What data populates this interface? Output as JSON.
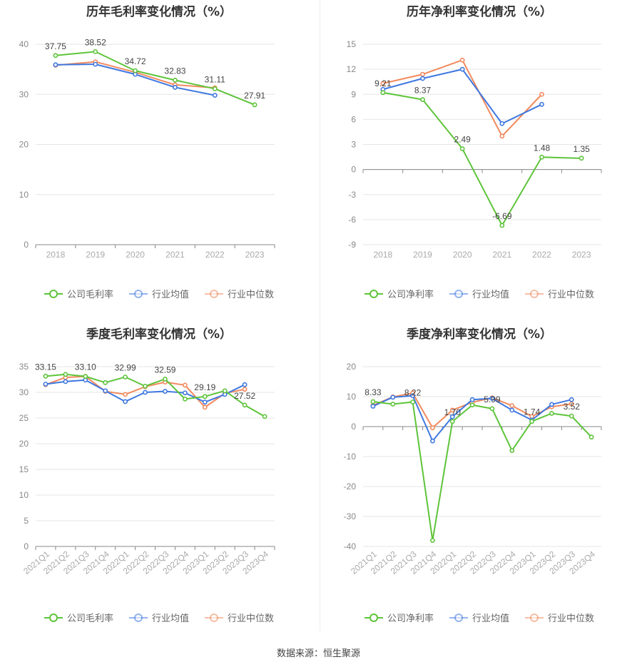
{
  "colors": {
    "company": "#5ec43a",
    "avg": "#3f78e0",
    "median": "#f28a5e"
  },
  "source": "数据来源：恒生聚源",
  "chart_data": [
    {
      "type": "line",
      "title": "历年毛利率变化情况（%）",
      "categories": [
        "2018",
        "2019",
        "2020",
        "2021",
        "2022",
        "2023"
      ],
      "ylim": [
        0,
        40
      ],
      "yticks": [
        0,
        10,
        20,
        30,
        40
      ],
      "grid": true,
      "legend_position": "bottom",
      "series": [
        {
          "name": "公司毛利率",
          "values": [
            37.75,
            38.52,
            34.72,
            32.83,
            31.11,
            27.91
          ],
          "labels": [
            "37.75",
            "38.52",
            "34.72",
            "32.83",
            "31.11",
            "27.91"
          ]
        },
        {
          "name": "行业均值",
          "values": [
            35.9,
            36.0,
            34.0,
            31.4,
            29.8,
            null
          ]
        },
        {
          "name": "行业中位数",
          "values": [
            35.8,
            36.5,
            34.4,
            31.9,
            31.3,
            null
          ]
        }
      ]
    },
    {
      "type": "line",
      "title": "历年净利率变化情况（%）",
      "categories": [
        "2018",
        "2019",
        "2020",
        "2021",
        "2022",
        "2023"
      ],
      "ylim": [
        -9,
        15
      ],
      "yticks": [
        -9,
        -6,
        -3,
        0,
        3,
        6,
        9,
        12,
        15
      ],
      "grid": true,
      "legend_position": "bottom",
      "series": [
        {
          "name": "公司净利率",
          "values": [
            9.21,
            8.37,
            2.49,
            -6.69,
            1.48,
            1.35
          ],
          "labels": [
            "9.21",
            "8.37",
            "2.49",
            "-6.69",
            "1.48",
            "1.35"
          ]
        },
        {
          "name": "行业均值",
          "values": [
            9.6,
            10.9,
            12.0,
            5.5,
            7.8,
            null
          ]
        },
        {
          "name": "行业中位数",
          "values": [
            10.3,
            11.4,
            13.1,
            4.0,
            9.0,
            null
          ]
        }
      ]
    },
    {
      "type": "line",
      "title": "季度毛利率变化情况（%）",
      "categories": [
        "2021Q1",
        "2021Q2",
        "2021Q3",
        "2021Q4",
        "2022Q1",
        "2022Q2",
        "2022Q3",
        "2022Q4",
        "2023Q1",
        "2023Q2",
        "2023Q3",
        "2023Q4"
      ],
      "ylim": [
        0,
        35
      ],
      "yticks": [
        0,
        5,
        10,
        15,
        20,
        25,
        30,
        35
      ],
      "grid": true,
      "legend_position": "bottom",
      "series": [
        {
          "name": "公司毛利率",
          "values": [
            33.15,
            33.5,
            33.1,
            31.9,
            32.99,
            31.2,
            32.59,
            28.7,
            29.19,
            30.3,
            27.52,
            25.3
          ],
          "labels": [
            "33.15",
            "",
            "33.10",
            "",
            "32.99",
            "",
            "32.59",
            "",
            "29.19",
            "",
            "27.52",
            ""
          ]
        },
        {
          "name": "行业均值",
          "values": [
            31.6,
            32.1,
            32.4,
            30.3,
            28.2,
            30.0,
            30.2,
            29.9,
            28.1,
            29.6,
            31.5,
            null
          ]
        },
        {
          "name": "行业中位数",
          "values": [
            31.5,
            32.9,
            33.1,
            30.2,
            29.6,
            31.1,
            32.0,
            31.4,
            27.1,
            29.8,
            30.6,
            null
          ]
        }
      ]
    },
    {
      "type": "line",
      "title": "季度净利率变化情况（%）",
      "categories": [
        "2021Q1",
        "2021Q2",
        "2021Q3",
        "2021Q4",
        "2022Q1",
        "2022Q2",
        "2022Q3",
        "2022Q4",
        "2023Q1",
        "2023Q2",
        "2023Q3",
        "2023Q4"
      ],
      "ylim": [
        -40,
        20
      ],
      "yticks": [
        -40,
        -30,
        -20,
        -10,
        0,
        10,
        20
      ],
      "grid": true,
      "legend_position": "bottom",
      "series": [
        {
          "name": "公司净利率",
          "values": [
            8.33,
            7.5,
            8.22,
            -38.0,
            1.7,
            7.2,
            5.99,
            -8.0,
            1.74,
            4.4,
            3.52,
            -3.5
          ],
          "labels": [
            "8.33",
            "",
            "8.22",
            "",
            "1.70",
            "",
            "5.99",
            "",
            "1.74",
            "",
            "3.52",
            ""
          ]
        },
        {
          "name": "行业均值",
          "values": [
            6.8,
            9.8,
            10.3,
            -4.8,
            3.3,
            9.0,
            9.4,
            5.5,
            2.2,
            7.4,
            9.0,
            null
          ]
        },
        {
          "name": "行业中位数",
          "values": [
            7.1,
            9.9,
            11.2,
            -0.4,
            5.5,
            8.1,
            9.6,
            7.0,
            3.4,
            6.6,
            7.6,
            null
          ]
        }
      ]
    }
  ]
}
